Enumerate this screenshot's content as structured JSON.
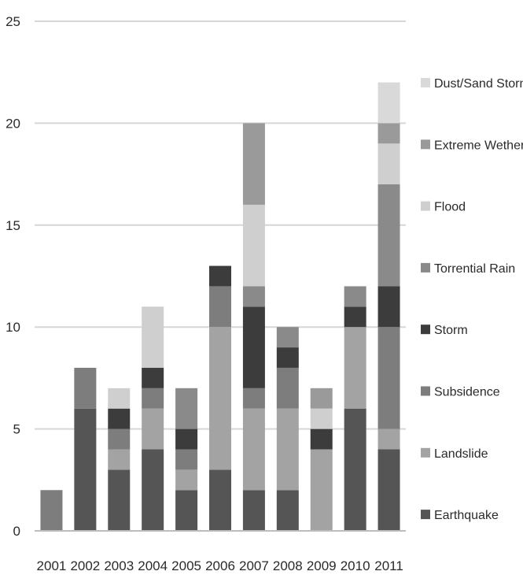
{
  "chart_data": {
    "type": "bar",
    "stacked": true,
    "categories": [
      "2001",
      "2002",
      "2003",
      "2004",
      "2005",
      "2006",
      "2007",
      "2008",
      "2009",
      "2010",
      "2011"
    ],
    "ylim": [
      0,
      25
    ],
    "yticks": [
      "0",
      "5",
      "10",
      "15",
      "20",
      "25"
    ],
    "grid": true,
    "legend_position": "right",
    "series": [
      {
        "name": "Earthquake",
        "color": "#555555",
        "values": [
          0,
          6,
          3,
          4,
          2,
          3,
          2,
          2,
          0,
          6,
          4
        ]
      },
      {
        "name": "Landslide",
        "color": "#a3a3a3",
        "values": [
          0,
          0,
          1,
          2,
          1,
          7,
          4,
          4,
          4,
          4,
          1
        ]
      },
      {
        "name": "Subsidence",
        "color": "#7d7d7d",
        "values": [
          2,
          2,
          1,
          1,
          1,
          2,
          1,
          2,
          0,
          0,
          5
        ]
      },
      {
        "name": "Storm",
        "color": "#3c3c3c",
        "values": [
          0,
          0,
          1,
          1,
          1,
          1,
          4,
          1,
          1,
          1,
          2
        ]
      },
      {
        "name": "Torrential Rain",
        "color": "#8a8a8a",
        "values": [
          0,
          0,
          0,
          0,
          2,
          0,
          1,
          1,
          0,
          1,
          5
        ]
      },
      {
        "name": "Flood",
        "color": "#cfcfcf",
        "values": [
          0,
          0,
          1,
          3,
          0,
          0,
          4,
          0,
          1,
          0,
          2
        ]
      },
      {
        "name": "Extreme Wether",
        "color": "#9a9a9a",
        "values": [
          0,
          0,
          0,
          0,
          0,
          0,
          4,
          0,
          1,
          0,
          1
        ]
      },
      {
        "name": "Dust/Sand Storm",
        "color": "#d9d9d9",
        "values": [
          0,
          0,
          0,
          0,
          0,
          0,
          0,
          0,
          0,
          0,
          2
        ]
      }
    ]
  }
}
